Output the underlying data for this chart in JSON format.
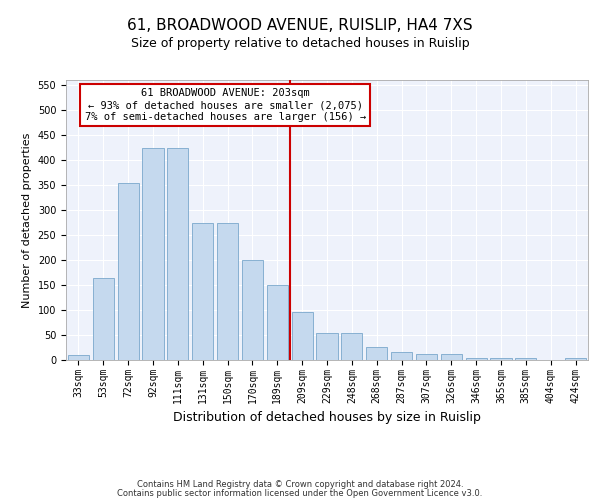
{
  "title": "61, BROADWOOD AVENUE, RUISLIP, HA4 7XS",
  "subtitle": "Size of property relative to detached houses in Ruislip",
  "xlabel": "Distribution of detached houses by size in Ruislip",
  "ylabel": "Number of detached properties",
  "categories": [
    "33sqm",
    "53sqm",
    "72sqm",
    "92sqm",
    "111sqm",
    "131sqm",
    "150sqm",
    "170sqm",
    "189sqm",
    "209sqm",
    "229sqm",
    "248sqm",
    "268sqm",
    "287sqm",
    "307sqm",
    "326sqm",
    "346sqm",
    "365sqm",
    "385sqm",
    "404sqm",
    "424sqm"
  ],
  "values": [
    10,
    165,
    355,
    425,
    425,
    275,
    275,
    200,
    150,
    97,
    55,
    55,
    27,
    17,
    12,
    12,
    5,
    5,
    5,
    0,
    5
  ],
  "bar_color": "#c5d9ee",
  "bar_edge_color": "#7aa8cc",
  "vline_x_index": 9,
  "vline_color": "#cc0000",
  "annotation_text": "61 BROADWOOD AVENUE: 203sqm\n← 93% of detached houses are smaller (2,075)\n7% of semi-detached houses are larger (156) →",
  "annotation_box_color": "#cc0000",
  "ylim": [
    0,
    560
  ],
  "yticks": [
    0,
    50,
    100,
    150,
    200,
    250,
    300,
    350,
    400,
    450,
    500,
    550
  ],
  "footer1": "Contains HM Land Registry data © Crown copyright and database right 2024.",
  "footer2": "Contains public sector information licensed under the Open Government Licence v3.0.",
  "background_color": "#eef2fb",
  "grid_color": "#ffffff",
  "title_fontsize": 11,
  "subtitle_fontsize": 9,
  "tick_fontsize": 7,
  "ylabel_fontsize": 8,
  "xlabel_fontsize": 9,
  "footer_fontsize": 6,
  "annotation_fontsize": 7.5
}
